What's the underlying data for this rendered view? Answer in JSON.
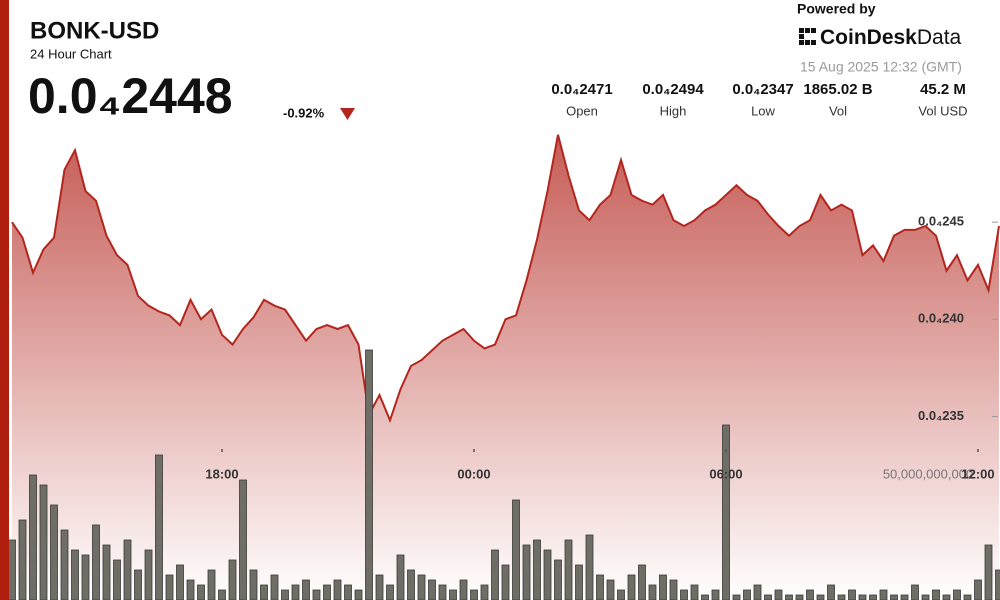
{
  "chart_data": {
    "type": "line",
    "title": "BONK-USD",
    "subtitle": "24 Hour Chart",
    "price": "0.0₄2448",
    "change": "-0.92%",
    "powered_by": "Powered by",
    "brand": "CoinDesk",
    "brand_suffix": "Data",
    "timestamp": "15 Aug 2025 12:32 (GMT)",
    "stats": [
      {
        "value": "0.0₄2471",
        "label": "Open"
      },
      {
        "value": "0.0₄2494",
        "label": "High"
      },
      {
        "value": "0.0₄2347",
        "label": "Low"
      },
      {
        "value": "1865.02 B",
        "label": "Vol"
      },
      {
        "value": "45.2 M",
        "label": "Vol USD"
      }
    ],
    "categories": [
      null,
      null,
      null,
      null,
      null,
      null,
      null,
      null,
      null,
      null,
      null,
      null,
      null,
      null,
      null,
      null,
      null,
      null,
      null,
      null,
      "18:00",
      null,
      null,
      null,
      null,
      null,
      null,
      null,
      null,
      null,
      null,
      null,
      null,
      null,
      null,
      null,
      null,
      null,
      null,
      null,
      null,
      null,
      null,
      null,
      "00:00",
      null,
      null,
      null,
      null,
      null,
      null,
      null,
      null,
      null,
      null,
      null,
      null,
      null,
      null,
      null,
      null,
      null,
      null,
      null,
      null,
      null,
      null,
      null,
      "06:00",
      null,
      null,
      null,
      null,
      null,
      null,
      null,
      null,
      null,
      null,
      null,
      null,
      null,
      null,
      null,
      null,
      null,
      null,
      null,
      null,
      null,
      null,
      null,
      "12:00",
      null,
      null
    ],
    "series": [
      {
        "color": "#b3261e",
        "values": [
          2.45e-05,
          2.442e-05,
          2.424e-05,
          2.436e-05,
          2.442e-05,
          2.477e-05,
          2.487e-05,
          2.466e-05,
          2.461e-05,
          2.443e-05,
          2.433e-05,
          2.428e-05,
          2.412e-05,
          2.407e-05,
          2.404e-05,
          2.402e-05,
          2.397e-05,
          2.41e-05,
          2.4e-05,
          2.405e-05,
          2.392e-05,
          2.387e-05,
          2.395e-05,
          2.401e-05,
          2.41e-05,
          2.407e-05,
          2.405e-05,
          2.397e-05,
          2.389e-05,
          2.395e-05,
          2.397e-05,
          2.395e-05,
          2.397e-05,
          2.387e-05,
          2.351e-05,
          2.361e-05,
          2.348e-05,
          2.364e-05,
          2.376e-05,
          2.379e-05,
          2.384e-05,
          2.389e-05,
          2.392e-05,
          2.395e-05,
          2.389e-05,
          2.385e-05,
          2.387e-05,
          2.4e-05,
          2.402e-05,
          2.42e-05,
          2.441e-05,
          2.466e-05,
          2.495e-05,
          2.474e-05,
          2.456e-05,
          2.451e-05,
          2.459e-05,
          2.464e-05,
          2.482e-05,
          2.464e-05,
          2.461e-05,
          2.459e-05,
          2.464e-05,
          2.451e-05,
          2.448e-05,
          2.451e-05,
          2.456e-05,
          2.459e-05,
          2.464e-05,
          2.469e-05,
          2.464e-05,
          2.461e-05,
          2.454e-05,
          2.448e-05,
          2.443e-05,
          2.448e-05,
          2.451e-05,
          2.464e-05,
          2.456e-05,
          2.459e-05,
          2.456e-05,
          2.433e-05,
          2.438e-05,
          2.43e-05,
          2.443e-05,
          2.446e-05,
          2.446e-05,
          2.448e-05,
          2.443e-05,
          2.425e-05,
          2.433e-05,
          2.42e-05,
          2.428e-05,
          2.415e-05,
          2.448e-05
        ]
      },
      {
        "type": "bar",
        "axis": "y2",
        "color": "#6e6e67",
        "values": [
          24000000000,
          32000000000,
          50000000000,
          46000000000,
          38000000000,
          28000000000,
          20000000000,
          18000000000,
          30000000000,
          22000000000,
          16000000000,
          24000000000,
          12000000000,
          20000000000,
          58000000000,
          10000000000,
          14000000000,
          8000000000,
          6000000000,
          12000000000,
          4000000000,
          16000000000,
          48000000000,
          12000000000,
          6000000000,
          10000000000,
          4000000000,
          6000000000,
          8000000000,
          4000000000,
          6000000000,
          8000000000,
          6000000000,
          4000000000,
          100000000000,
          10000000000,
          6000000000,
          18000000000,
          12000000000,
          10000000000,
          8000000000,
          6000000000,
          4000000000,
          8000000000,
          4000000000,
          6000000000,
          20000000000,
          14000000000,
          40000000000,
          22000000000,
          24000000000,
          20000000000,
          16000000000,
          24000000000,
          14000000000,
          26000000000,
          10000000000,
          8000000000,
          4000000000,
          10000000000,
          14000000000,
          6000000000,
          10000000000,
          8000000000,
          4000000000,
          6000000000,
          2000000000,
          4000000000,
          70000000000,
          2000000000,
          4000000000,
          6000000000,
          2000000000,
          4000000000,
          2000000000,
          2000000000,
          4000000000,
          2000000000,
          6000000000,
          2000000000,
          4000000000,
          2000000000,
          2000000000,
          4000000000,
          2000000000,
          2000000000,
          6000000000,
          2000000000,
          4000000000,
          2000000000,
          4000000000,
          2000000000,
          8000000000,
          22000000000,
          12000000000
        ]
      }
    ],
    "ylim": [
      2.325e-05,
      2.5e-05
    ],
    "yticks": [
      {
        "value": 2.45e-05,
        "label": "0.0₄245"
      },
      {
        "value": 2.4e-05,
        "label": "0.0₄240"
      },
      {
        "value": 2.35e-05,
        "label": "0.0₄235"
      }
    ],
    "y2lim": [
      0,
      120000000000
    ],
    "y2ticks": [
      {
        "value": 50000000000,
        "label": "50,000,000,000"
      }
    ]
  }
}
